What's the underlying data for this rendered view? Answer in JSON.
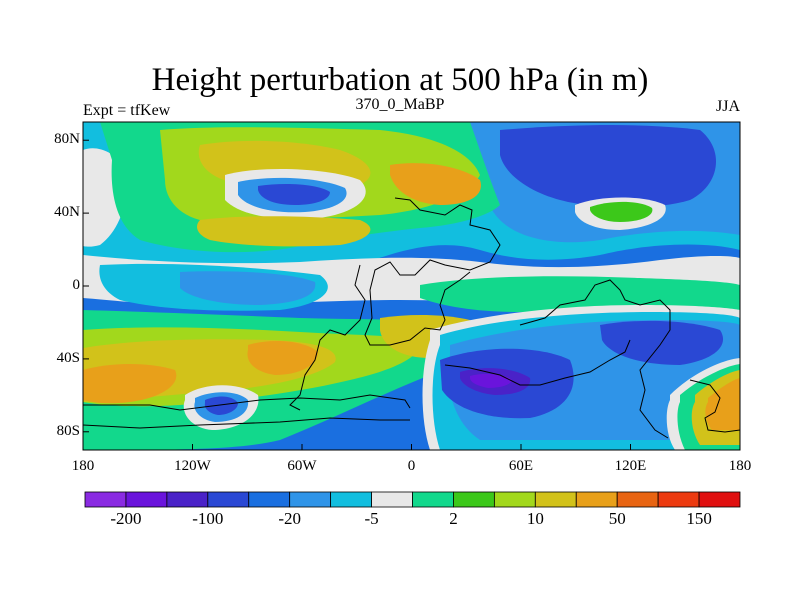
{
  "title": "Height perturbation at 500 hPa (in m)",
  "left_label": "Expt = tfKew",
  "center_label": "370_0_MaBP",
  "right_label": "JJA",
  "lat_ticks": [
    "80N",
    "40N",
    "0",
    "40S",
    "80S"
  ],
  "lon_ticks": [
    "180",
    "120W",
    "60W",
    "0",
    "60E",
    "120E",
    "180"
  ],
  "colorbar": {
    "colors": [
      "#8a2be2",
      "#6a14dc",
      "#4a22c8",
      "#2a48d4",
      "#1a6fe0",
      "#2f94e8",
      "#12bedf",
      "#e8e8e8",
      "#12d88c",
      "#3cc81a",
      "#a2d81c",
      "#d2c21a",
      "#e8a01a",
      "#e86412",
      "#ec3a10",
      "#e01010"
    ],
    "labels": [
      "-200",
      "-100",
      "-20",
      "-5",
      "2",
      "10",
      "50",
      "150"
    ]
  },
  "contour_colors": {
    "background": "#1a6fe0",
    "neutral": "#e8e8e8",
    "light_green": "#12d88c",
    "green": "#3cc81a",
    "yellow_green": "#a2d81c",
    "yellow": "#d2c21a",
    "orange": "#e8a01a",
    "red_orange": "#e86412",
    "red": "#ec3a10",
    "deep_blue": "#2a48d4",
    "indigo": "#4a22c8",
    "violet": "#6a14dc",
    "cyan": "#12bedf",
    "light_blue": "#2f94e8"
  }
}
